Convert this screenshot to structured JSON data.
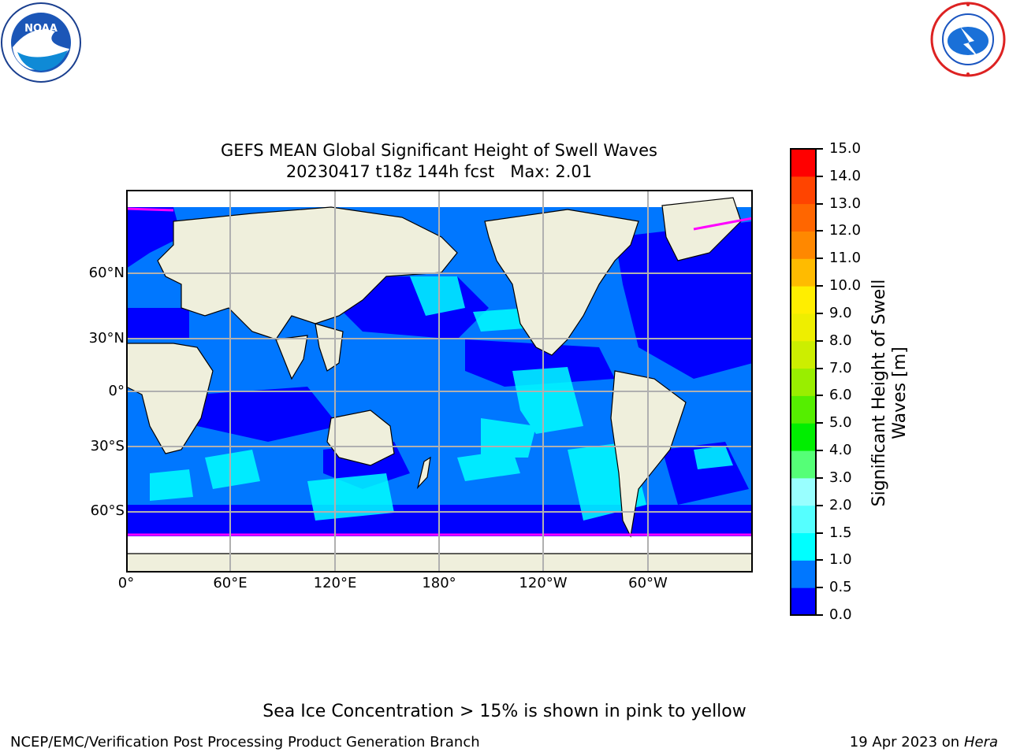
{
  "header": {
    "left_logo": "noaa-logo",
    "right_logo": "nws-logo"
  },
  "figure": {
    "title_line1": "GEFS MEAN Global Significant Height of Swell Waves",
    "title_line2": "20230417 t18z 144h fcst   Max: 2.01"
  },
  "map": {
    "projection": "plate-carree",
    "lat_labels": [
      "60°N",
      "30°N",
      "0°",
      "30°S",
      "60°S"
    ],
    "lon_labels": [
      "0°",
      "60°E",
      "120°E",
      "180°",
      "120°W",
      "60°W"
    ],
    "colors": {
      "land": "#efefdc",
      "ocean_dark": "#0000ff",
      "ocean_mid": "#0077ff",
      "ocean_light": "#00ffff",
      "ocean_lighter": "#55ffff",
      "ice": "#ff00ff",
      "grid": "#b0b0b0"
    }
  },
  "colorbar": {
    "label": "Significant Height of Swell\nWaves [m]",
    "ticks": [
      "15.0",
      "14.0",
      "13.0",
      "12.0",
      "11.0",
      "10.0",
      "9.0",
      "8.0",
      "7.0",
      "6.0",
      "5.0",
      "4.0",
      "3.0",
      "2.0",
      "1.5",
      "1.0",
      "0.5",
      "0.0"
    ],
    "colors": [
      "#0000ff",
      "#0077ff",
      "#00ffff",
      "#55ffff",
      "#99ffff",
      "#55ff77",
      "#00ee00",
      "#55ee00",
      "#99ee00",
      "#ccee00",
      "#eeee00",
      "#ffee00",
      "#ffbb00",
      "#ff8800",
      "#ff6600",
      "#ff4400",
      "#ff0000"
    ]
  },
  "note": "Sea Ice Concentration > 15% is shown in pink to yellow",
  "footer": {
    "left": "NCEP/EMC/Verification Post Processing Product Generation Branch",
    "right_date": "19 Apr 2023 on ",
    "right_host": "Hera"
  }
}
